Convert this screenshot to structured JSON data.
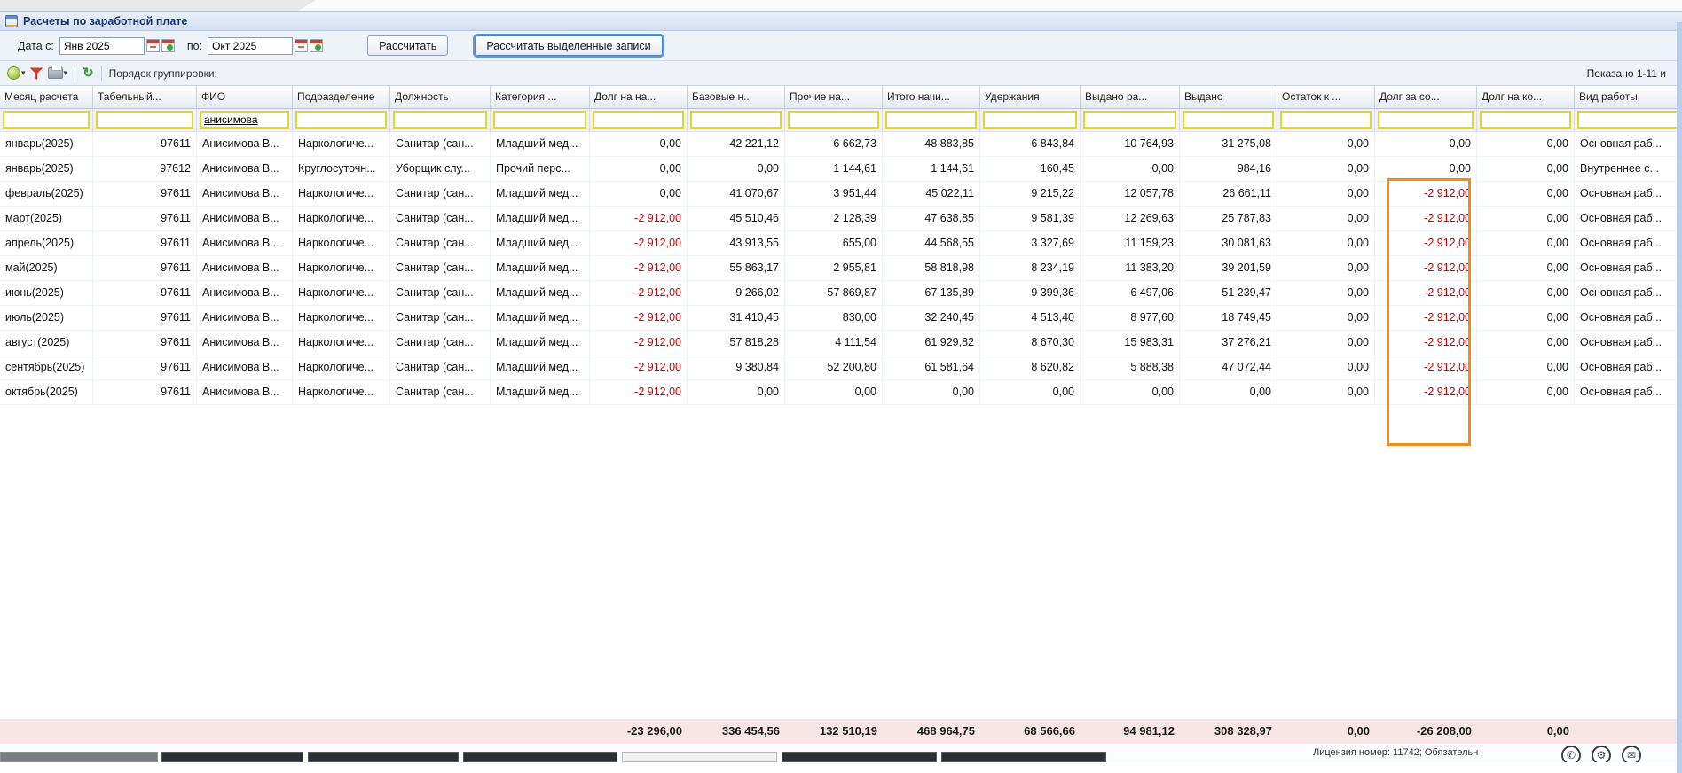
{
  "window": {
    "title": "Расчеты по заработной плате"
  },
  "filter_bar": {
    "date_from_label": "Дата с:",
    "date_from_value": "Янв 2025",
    "date_to_label": "по:",
    "date_to_value": "Окт 2025",
    "calc_button": "Рассчитать",
    "calc_selected_button": "Рассчитать выделенные записи"
  },
  "toolbar": {
    "grouping_label": "Порядок группировки:",
    "shown_text": "Показано 1-11 и"
  },
  "table": {
    "columns": [
      {
        "label": "Месяц расчета",
        "align": "left"
      },
      {
        "label": "Табельный...",
        "align": "right"
      },
      {
        "label": "ФИО",
        "align": "left"
      },
      {
        "label": "Подразделение",
        "align": "left"
      },
      {
        "label": "Должность",
        "align": "left"
      },
      {
        "label": "Категория ...",
        "align": "left"
      },
      {
        "label": "Долг на на...",
        "align": "right"
      },
      {
        "label": "Базовые н...",
        "align": "right"
      },
      {
        "label": "Прочие на...",
        "align": "right"
      },
      {
        "label": "Итого начи...",
        "align": "right"
      },
      {
        "label": "Удержания",
        "align": "right"
      },
      {
        "label": "Выдано ра...",
        "align": "right"
      },
      {
        "label": "Выдано",
        "align": "right"
      },
      {
        "label": "Остаток к ...",
        "align": "right"
      },
      {
        "label": "Долг за со...",
        "align": "right"
      },
      {
        "label": "Долг на ко...",
        "align": "right"
      },
      {
        "label": "Вид работы",
        "align": "left"
      }
    ],
    "filter_values": [
      "",
      "",
      "анисимова",
      "",
      "",
      "",
      "",
      "",
      "",
      "",
      "",
      "",
      "",
      "",
      "",
      "",
      ""
    ],
    "rows": [
      [
        "январь(2025)",
        "97611",
        "Анисимова В...",
        "Наркологиче...",
        "Санитар (сан...",
        "Младший мед...",
        "0,00",
        "42 221,12",
        "6 662,73",
        "48 883,85",
        "6 843,84",
        "10 764,93",
        "31 275,08",
        "0,00",
        "0,00",
        "0,00",
        "Основная раб..."
      ],
      [
        "январь(2025)",
        "97612",
        "Анисимова В...",
        "Круглосуточн...",
        "Уборщик слу...",
        "Прочий перс...",
        "0,00",
        "0,00",
        "1 144,61",
        "1 144,61",
        "160,45",
        "0,00",
        "984,16",
        "0,00",
        "0,00",
        "0,00",
        "Внутреннее с..."
      ],
      [
        "февраль(2025)",
        "97611",
        "Анисимова В...",
        "Наркологиче...",
        "Санитар (сан...",
        "Младший мед...",
        "0,00",
        "41 070,67",
        "3 951,44",
        "45 022,11",
        "9 215,22",
        "12 057,78",
        "26 661,11",
        "0,00",
        "-2 912,00",
        "0,00",
        "Основная раб..."
      ],
      [
        "март(2025)",
        "97611",
        "Анисимова В...",
        "Наркологиче...",
        "Санитар (сан...",
        "Младший мед...",
        "-2 912,00",
        "45 510,46",
        "2 128,39",
        "47 638,85",
        "9 581,39",
        "12 269,63",
        "25 787,83",
        "0,00",
        "-2 912,00",
        "0,00",
        "Основная раб..."
      ],
      [
        "апрель(2025)",
        "97611",
        "Анисимова В...",
        "Наркологиче...",
        "Санитар (сан...",
        "Младший мед...",
        "-2 912,00",
        "43 913,55",
        "655,00",
        "44 568,55",
        "3 327,69",
        "11 159,23",
        "30 081,63",
        "0,00",
        "-2 912,00",
        "0,00",
        "Основная раб..."
      ],
      [
        "май(2025)",
        "97611",
        "Анисимова В...",
        "Наркологиче...",
        "Санитар (сан...",
        "Младший мед...",
        "-2 912,00",
        "55 863,17",
        "2 955,81",
        "58 818,98",
        "8 234,19",
        "11 383,20",
        "39 201,59",
        "0,00",
        "-2 912,00",
        "0,00",
        "Основная раб..."
      ],
      [
        "июнь(2025)",
        "97611",
        "Анисимова В...",
        "Наркологиче...",
        "Санитар (сан...",
        "Младший мед...",
        "-2 912,00",
        "9 266,02",
        "57 869,87",
        "67 135,89",
        "9 399,36",
        "6 497,06",
        "51 239,47",
        "0,00",
        "-2 912,00",
        "0,00",
        "Основная раб..."
      ],
      [
        "июль(2025)",
        "97611",
        "Анисимова В...",
        "Наркологиче...",
        "Санитар (сан...",
        "Младший мед...",
        "-2 912,00",
        "31 410,45",
        "830,00",
        "32 240,45",
        "4 513,40",
        "8 977,60",
        "18 749,45",
        "0,00",
        "-2 912,00",
        "0,00",
        "Основная раб..."
      ],
      [
        "август(2025)",
        "97611",
        "Анисимова В...",
        "Наркологиче...",
        "Санитар (сан...",
        "Младший мед...",
        "-2 912,00",
        "57 818,28",
        "4 111,54",
        "61 929,82",
        "8 670,30",
        "15 983,31",
        "37 276,21",
        "0,00",
        "-2 912,00",
        "0,00",
        "Основная раб..."
      ],
      [
        "сентябрь(2025)",
        "97611",
        "Анисимова В...",
        "Наркологиче...",
        "Санитар (сан...",
        "Младший мед...",
        "-2 912,00",
        "9 380,84",
        "52 200,80",
        "61 581,64",
        "8 620,82",
        "5 888,38",
        "47 072,44",
        "0,00",
        "-2 912,00",
        "0,00",
        "Основная раб..."
      ],
      [
        "октябрь(2025)",
        "97611",
        "Анисимова В...",
        "Наркологиче...",
        "Санитар (сан...",
        "Младший мед...",
        "-2 912,00",
        "0,00",
        "0,00",
        "0,00",
        "0,00",
        "0,00",
        "0,00",
        "0,00",
        "-2 912,00",
        "0,00",
        "Основная раб..."
      ]
    ],
    "totals": [
      "",
      "",
      "",
      "",
      "",
      "",
      "-23 296,00",
      "336 454,56",
      "132 510,19",
      "468 964,75",
      "68 566,66",
      "94 981,12",
      "308 328,97",
      "0,00",
      "-26 208,00",
      "0,00",
      ""
    ]
  },
  "status_bar": {
    "license_text": "Лицензия номер: 11742; Обязательн"
  },
  "colors": {
    "highlight_orange": "#F28A1E",
    "negative_red": "#CC0000",
    "filter_border_yellow": "#DDD82A",
    "totals_background": "#F8E6E6"
  }
}
